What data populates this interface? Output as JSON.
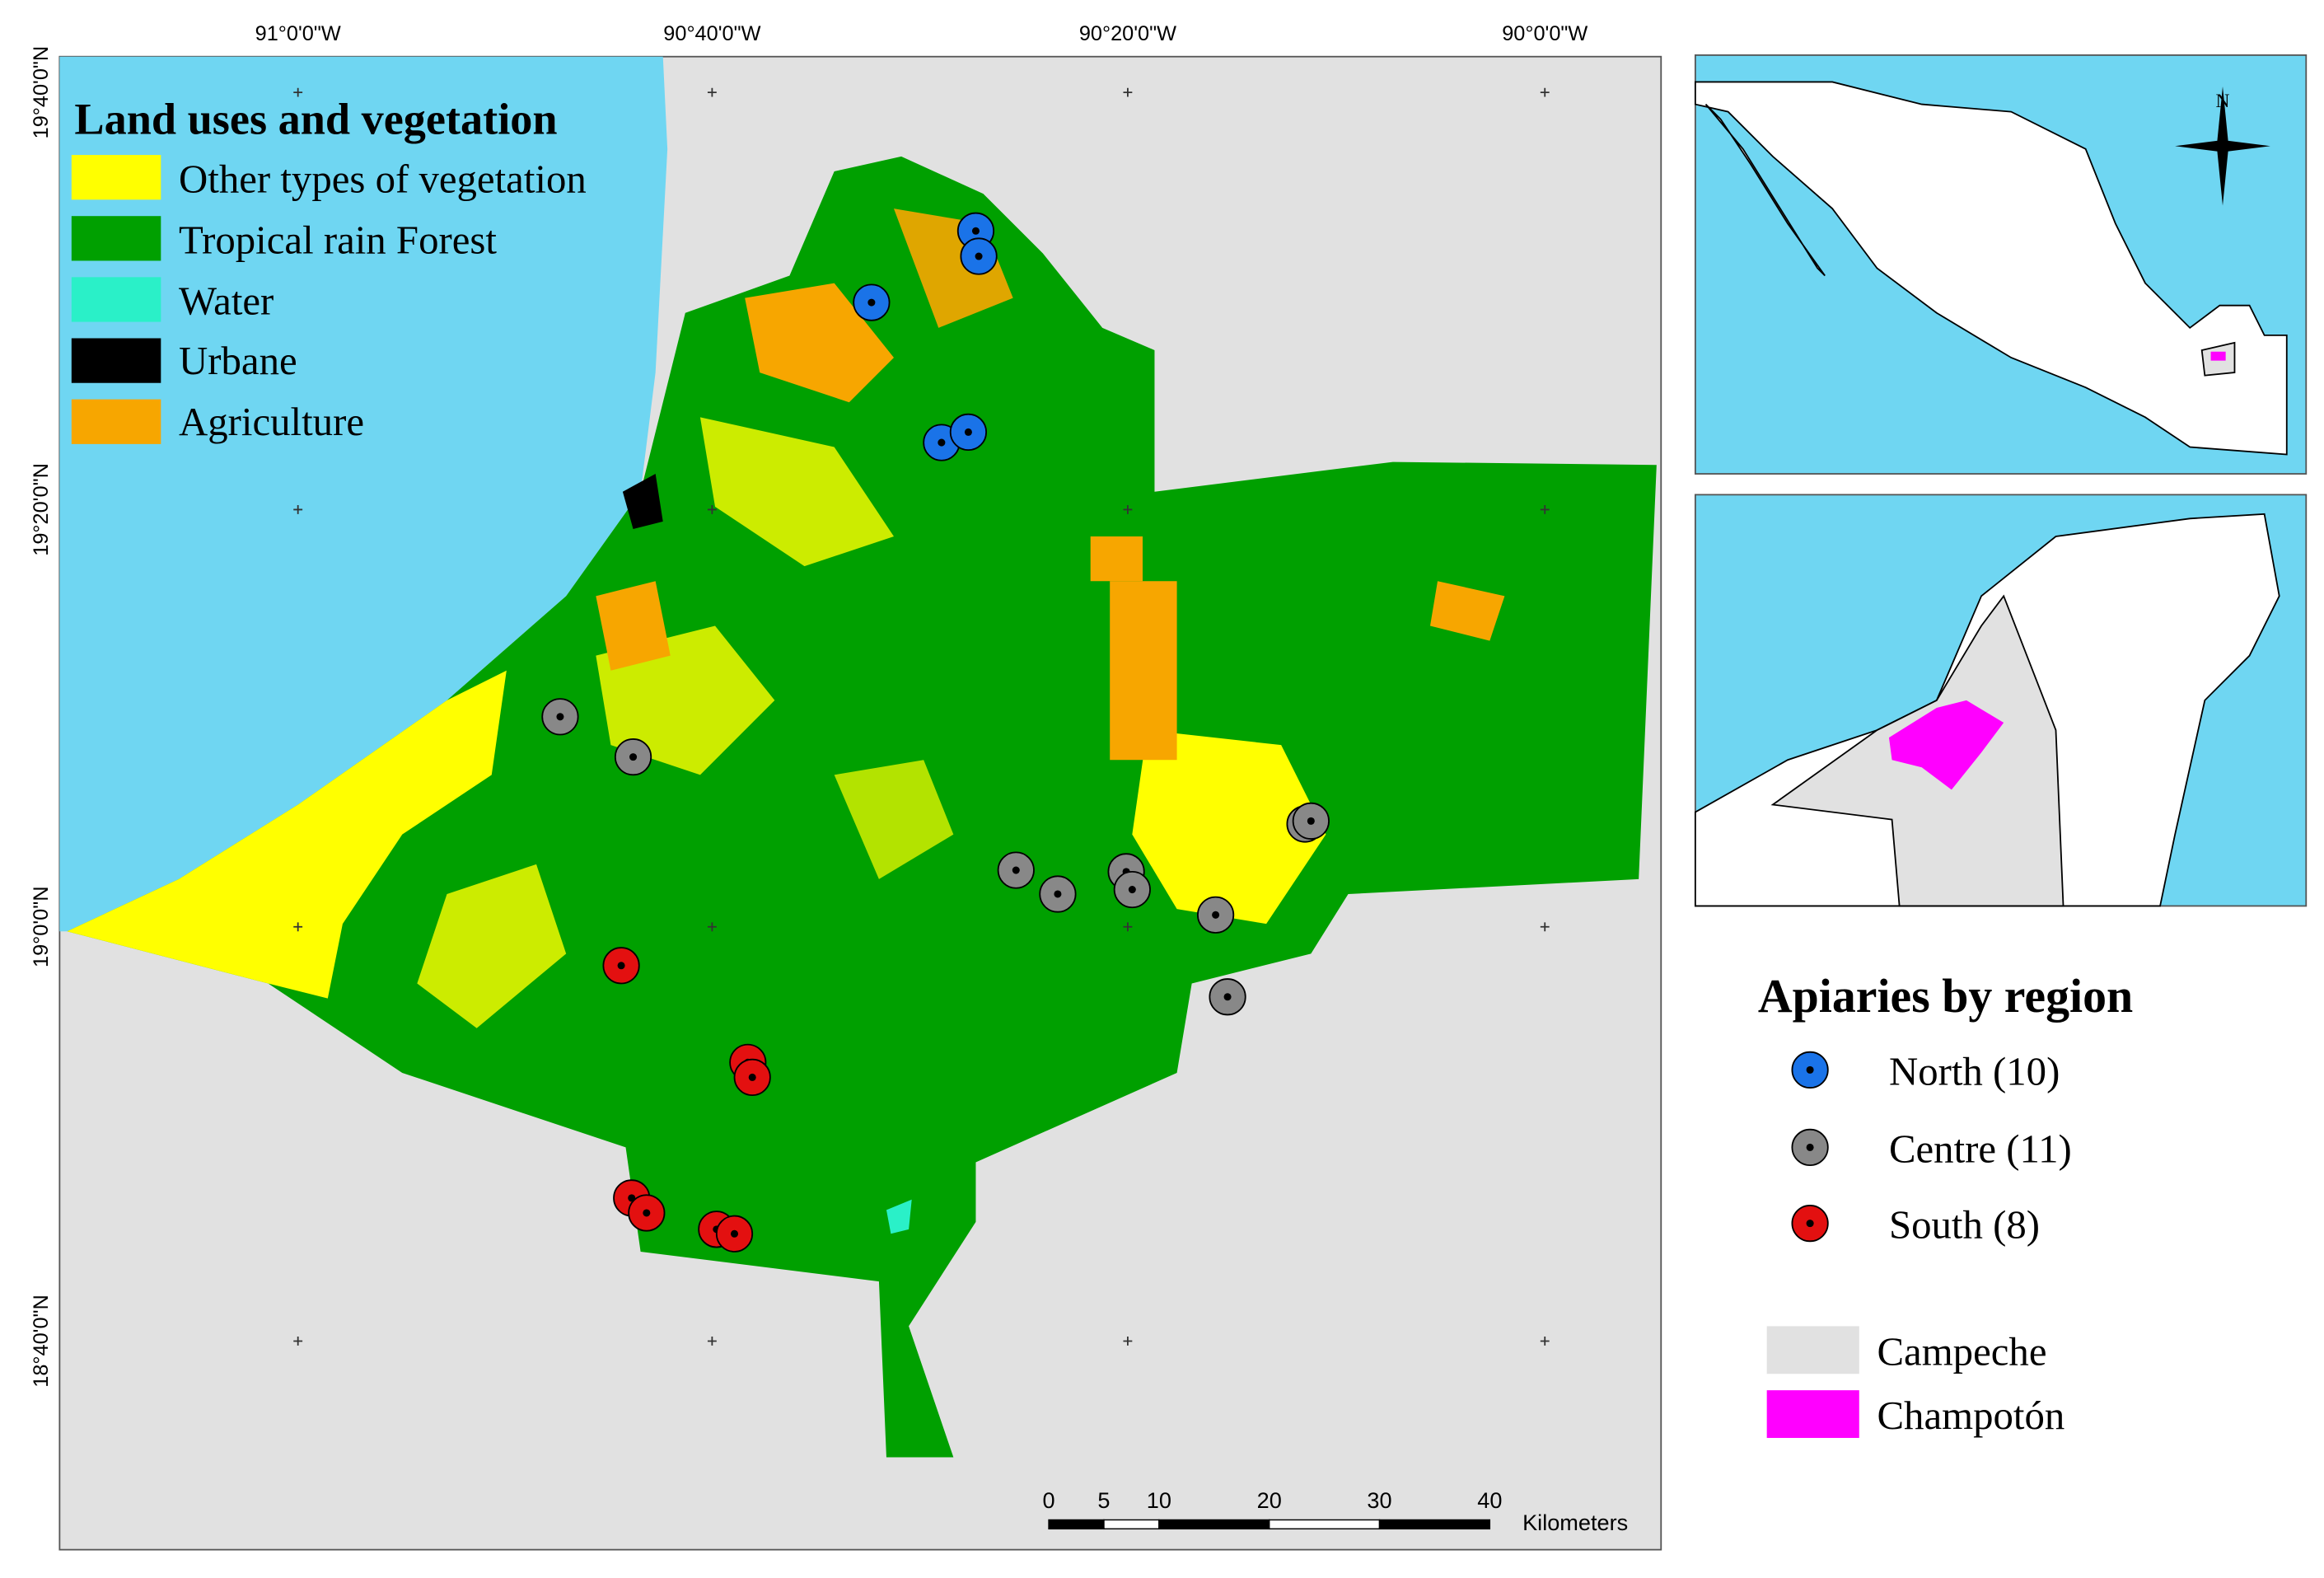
{
  "map": {
    "longitude_labels": [
      "91°0'0\"W",
      "90°40'0\"W",
      "90°20'0\"W",
      "90°0'0\"W"
    ],
    "latitude_labels": [
      "19°40'0\"N",
      "19°20'0\"N",
      "19°0'0\"N",
      "18°40'0\"N"
    ],
    "legend": {
      "title": "Land uses and vegetation",
      "items": [
        "Other types of vegetation",
        "Tropical rain Forest",
        "Water",
        "Urbane",
        "Agriculture"
      ]
    },
    "apiaries": {
      "title": "Apiaries by region",
      "items": [
        "North (10)",
        "Centre (11)",
        "South (8)"
      ]
    },
    "areas": [
      "Campeche",
      "Champotón"
    ],
    "north": "N",
    "scale_bar": {
      "ticks": [
        0,
        5,
        10,
        20,
        30,
        40
      ],
      "unit": "Kilometers"
    }
  }
}
